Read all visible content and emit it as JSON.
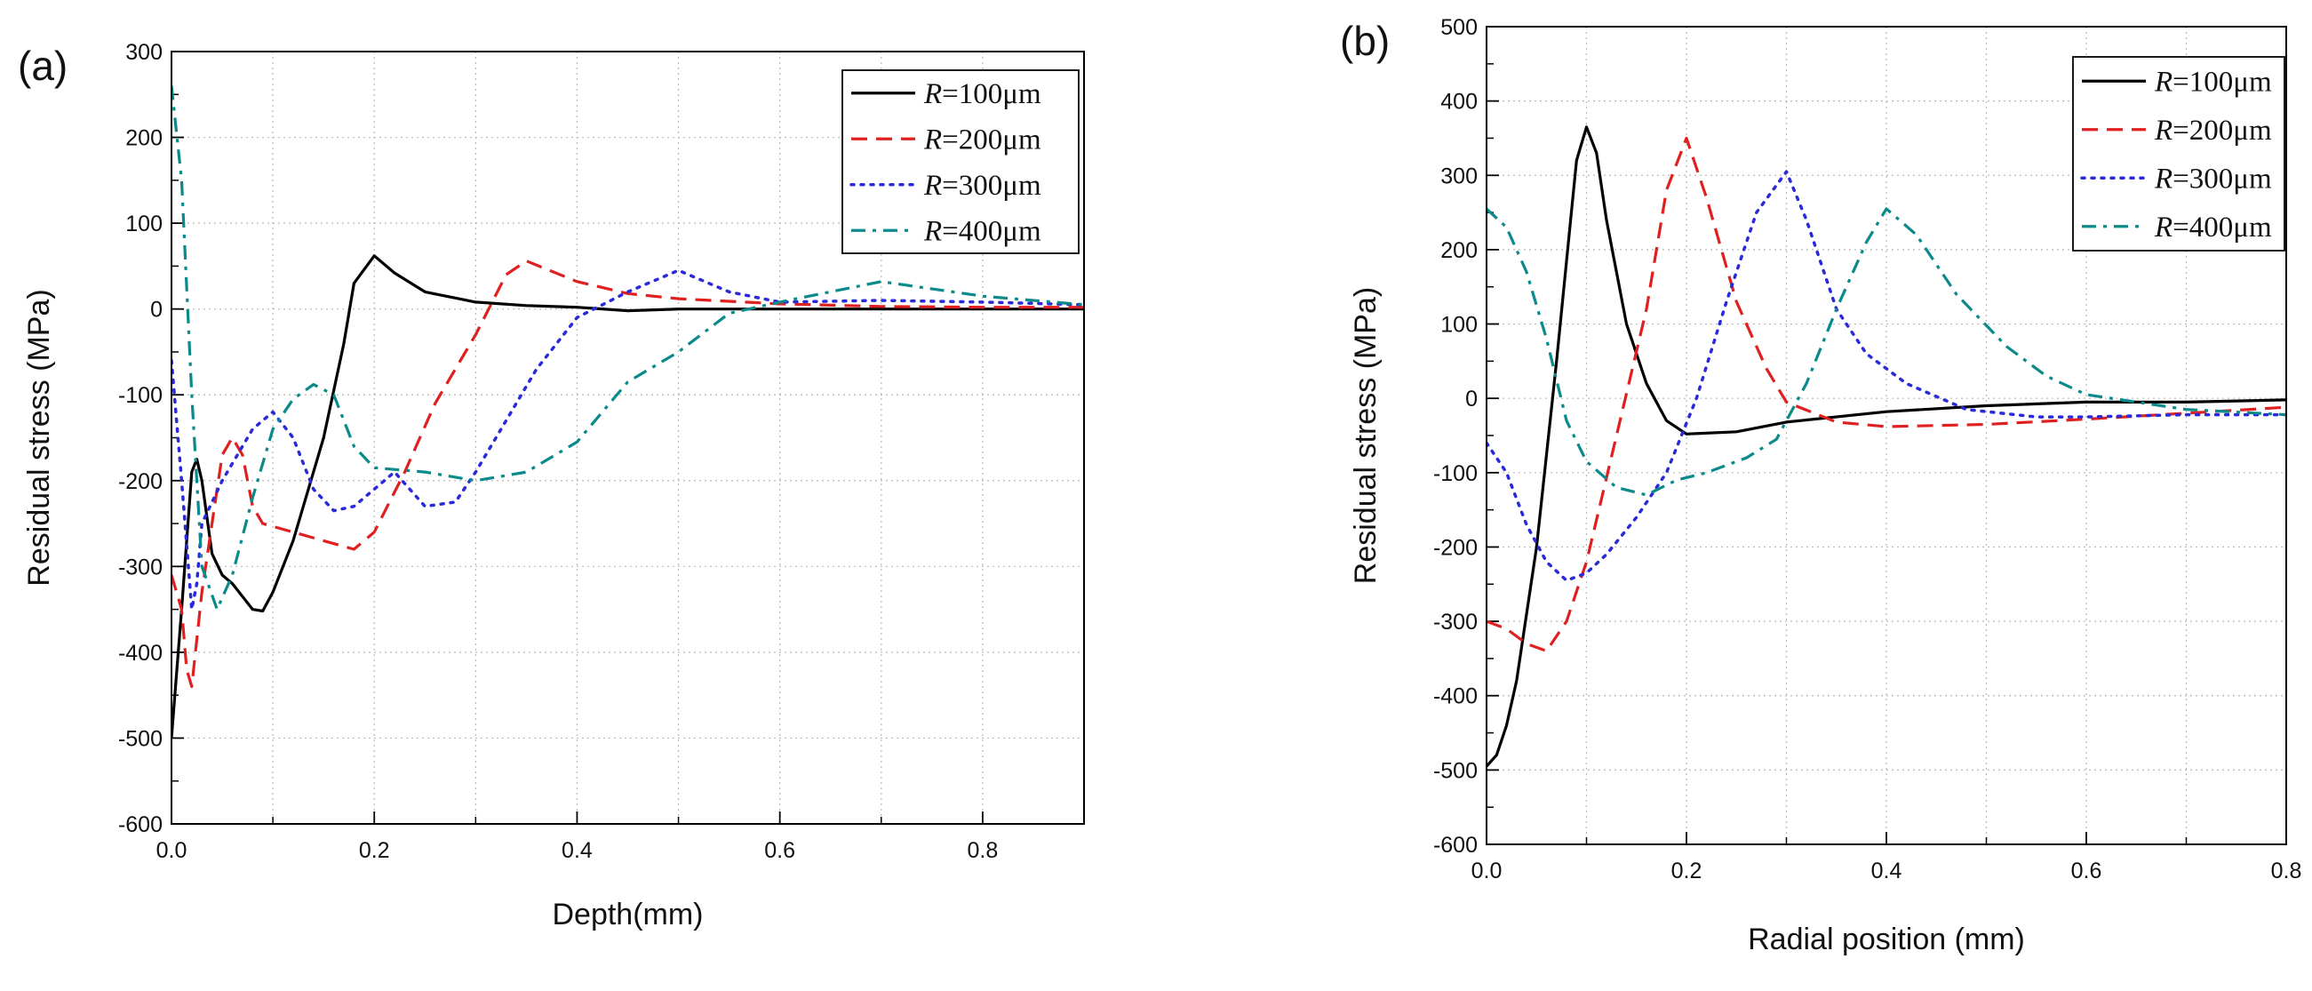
{
  "chart_data": [
    {
      "type": "line",
      "panel_label": "(a)",
      "xlabel": "Depth(mm)",
      "ylabel": "Residual stress (MPa)",
      "xlim": [
        0,
        0.9
      ],
      "ylim": [
        -600,
        300
      ],
      "x_ticks": [
        0.0,
        0.2,
        0.4,
        0.6,
        0.8
      ],
      "x_tick_labels": [
        "0.0",
        "0.2",
        "0.4",
        "0.6",
        "0.8"
      ],
      "y_ticks": [
        -600,
        -500,
        -400,
        -300,
        -200,
        -100,
        0,
        100,
        200,
        300
      ],
      "y_tick_labels": [
        "-600",
        "-500",
        "-400",
        "-300",
        "-200",
        "-100",
        "0",
        "100",
        "200",
        "300"
      ],
      "grid": true,
      "legend_position": "top-right",
      "series": [
        {
          "name": "R=100μm",
          "legend_var": "R",
          "legend_rest": "=100μm",
          "color": "#000000",
          "style": "solid",
          "points": [
            [
              0,
              -500
            ],
            [
              0.01,
              -350
            ],
            [
              0.02,
              -190
            ],
            [
              0.025,
              -175
            ],
            [
              0.03,
              -200
            ],
            [
              0.04,
              -285
            ],
            [
              0.05,
              -310
            ],
            [
              0.06,
              -320
            ],
            [
              0.07,
              -335
            ],
            [
              0.08,
              -350
            ],
            [
              0.09,
              -352
            ],
            [
              0.1,
              -330
            ],
            [
              0.12,
              -270
            ],
            [
              0.15,
              -150
            ],
            [
              0.17,
              -40
            ],
            [
              0.18,
              30
            ],
            [
              0.2,
              62
            ],
            [
              0.22,
              42
            ],
            [
              0.25,
              20
            ],
            [
              0.3,
              8
            ],
            [
              0.35,
              4
            ],
            [
              0.4,
              2
            ],
            [
              0.45,
              -2
            ],
            [
              0.5,
              0
            ],
            [
              0.6,
              0
            ],
            [
              0.7,
              0
            ],
            [
              0.8,
              0
            ],
            [
              0.9,
              0
            ]
          ]
        },
        {
          "name": "R=200μm",
          "legend_var": "R",
          "legend_rest": "=200μm",
          "color": "#e02020",
          "style": "dashed",
          "points": [
            [
              0,
              -310
            ],
            [
              0.01,
              -350
            ],
            [
              0.015,
              -420
            ],
            [
              0.02,
              -440
            ],
            [
              0.03,
              -330
            ],
            [
              0.04,
              -250
            ],
            [
              0.05,
              -170
            ],
            [
              0.06,
              -150
            ],
            [
              0.07,
              -170
            ],
            [
              0.08,
              -230
            ],
            [
              0.09,
              -250
            ],
            [
              0.12,
              -260
            ],
            [
              0.15,
              -270
            ],
            [
              0.18,
              -280
            ],
            [
              0.2,
              -260
            ],
            [
              0.23,
              -190
            ],
            [
              0.26,
              -110
            ],
            [
              0.3,
              -30
            ],
            [
              0.33,
              40
            ],
            [
              0.35,
              56
            ],
            [
              0.4,
              32
            ],
            [
              0.45,
              18
            ],
            [
              0.5,
              12
            ],
            [
              0.6,
              6
            ],
            [
              0.7,
              3
            ],
            [
              0.8,
              2
            ],
            [
              0.9,
              2
            ]
          ]
        },
        {
          "name": "R=300μm",
          "legend_var": "R",
          "legend_rest": "=300μm",
          "color": "#2a2ad8",
          "style": "dotted",
          "points": [
            [
              0,
              -60
            ],
            [
              0.01,
              -200
            ],
            [
              0.02,
              -350
            ],
            [
              0.025,
              -320
            ],
            [
              0.03,
              -250
            ],
            [
              0.05,
              -200
            ],
            [
              0.08,
              -140
            ],
            [
              0.1,
              -120
            ],
            [
              0.12,
              -150
            ],
            [
              0.14,
              -210
            ],
            [
              0.16,
              -235
            ],
            [
              0.18,
              -230
            ],
            [
              0.2,
              -210
            ],
            [
              0.22,
              -190
            ],
            [
              0.25,
              -230
            ],
            [
              0.28,
              -225
            ],
            [
              0.3,
              -190
            ],
            [
              0.33,
              -130
            ],
            [
              0.36,
              -70
            ],
            [
              0.4,
              -10
            ],
            [
              0.45,
              20
            ],
            [
              0.5,
              45
            ],
            [
              0.55,
              20
            ],
            [
              0.6,
              8
            ],
            [
              0.7,
              10
            ],
            [
              0.8,
              8
            ],
            [
              0.9,
              5
            ]
          ]
        },
        {
          "name": "R=400μm",
          "legend_var": "R",
          "legend_rest": "=400μm",
          "color": "#0a8a8a",
          "style": "dashdot",
          "points": [
            [
              0,
              260
            ],
            [
              0.01,
              150
            ],
            [
              0.02,
              -100
            ],
            [
              0.03,
              -300
            ],
            [
              0.045,
              -350
            ],
            [
              0.06,
              -310
            ],
            [
              0.08,
              -220
            ],
            [
              0.1,
              -140
            ],
            [
              0.12,
              -105
            ],
            [
              0.14,
              -88
            ],
            [
              0.16,
              -100
            ],
            [
              0.18,
              -160
            ],
            [
              0.2,
              -185
            ],
            [
              0.25,
              -190
            ],
            [
              0.3,
              -200
            ],
            [
              0.35,
              -190
            ],
            [
              0.4,
              -155
            ],
            [
              0.45,
              -85
            ],
            [
              0.5,
              -50
            ],
            [
              0.55,
              -5
            ],
            [
              0.6,
              8
            ],
            [
              0.7,
              32
            ],
            [
              0.8,
              15
            ],
            [
              0.9,
              5
            ]
          ]
        }
      ]
    },
    {
      "type": "line",
      "panel_label": "(b)",
      "xlabel": "Radial position (mm)",
      "ylabel": "Residual stress (MPa)",
      "xlim": [
        0,
        0.8
      ],
      "ylim": [
        -600,
        500
      ],
      "x_ticks": [
        0.0,
        0.2,
        0.4,
        0.6,
        0.8
      ],
      "x_tick_labels": [
        "0.0",
        "0.2",
        "0.4",
        "0.6",
        "0.8"
      ],
      "y_ticks": [
        -600,
        -500,
        -400,
        -300,
        -200,
        -100,
        0,
        100,
        200,
        300,
        400,
        500
      ],
      "y_tick_labels": [
        "-600",
        "-500",
        "-400",
        "-300",
        "-200",
        "-100",
        "0",
        "100",
        "200",
        "300",
        "400",
        "500"
      ],
      "grid": true,
      "legend_position": "top-right",
      "series": [
        {
          "name": "R=100μm",
          "legend_var": "R",
          "legend_rest": "=100μm",
          "color": "#000000",
          "style": "solid",
          "points": [
            [
              0,
              -495
            ],
            [
              0.01,
              -480
            ],
            [
              0.02,
              -440
            ],
            [
              0.03,
              -380
            ],
            [
              0.05,
              -200
            ],
            [
              0.07,
              50
            ],
            [
              0.09,
              320
            ],
            [
              0.1,
              365
            ],
            [
              0.11,
              330
            ],
            [
              0.12,
              240
            ],
            [
              0.14,
              100
            ],
            [
              0.16,
              20
            ],
            [
              0.18,
              -30
            ],
            [
              0.2,
              -48
            ],
            [
              0.25,
              -45
            ],
            [
              0.3,
              -32
            ],
            [
              0.4,
              -18
            ],
            [
              0.5,
              -10
            ],
            [
              0.6,
              -5
            ],
            [
              0.7,
              -5
            ],
            [
              0.8,
              -2
            ]
          ]
        },
        {
          "name": "R=200μm",
          "legend_var": "R",
          "legend_rest": "=200μm",
          "color": "#e02020",
          "style": "dashed",
          "points": [
            [
              0,
              -300
            ],
            [
              0.02,
              -310
            ],
            [
              0.04,
              -330
            ],
            [
              0.06,
              -340
            ],
            [
              0.08,
              -300
            ],
            [
              0.1,
              -220
            ],
            [
              0.13,
              -50
            ],
            [
              0.16,
              120
            ],
            [
              0.18,
              280
            ],
            [
              0.2,
              350
            ],
            [
              0.22,
              270
            ],
            [
              0.25,
              130
            ],
            [
              0.28,
              40
            ],
            [
              0.3,
              -5
            ],
            [
              0.35,
              -32
            ],
            [
              0.4,
              -38
            ],
            [
              0.5,
              -35
            ],
            [
              0.6,
              -28
            ],
            [
              0.7,
              -20
            ],
            [
              0.8,
              -12
            ]
          ]
        },
        {
          "name": "R=300μm",
          "legend_var": "R",
          "legend_rest": "=300μm",
          "color": "#2a2ad8",
          "style": "dotted",
          "points": [
            [
              0,
              -60
            ],
            [
              0.02,
              -100
            ],
            [
              0.04,
              -170
            ],
            [
              0.06,
              -220
            ],
            [
              0.08,
              -245
            ],
            [
              0.1,
              -235
            ],
            [
              0.12,
              -210
            ],
            [
              0.15,
              -160
            ],
            [
              0.18,
              -100
            ],
            [
              0.21,
              0
            ],
            [
              0.24,
              130
            ],
            [
              0.27,
              250
            ],
            [
              0.3,
              305
            ],
            [
              0.32,
              240
            ],
            [
              0.35,
              120
            ],
            [
              0.38,
              60
            ],
            [
              0.42,
              20
            ],
            [
              0.48,
              -15
            ],
            [
              0.55,
              -25
            ],
            [
              0.6,
              -25
            ],
            [
              0.7,
              -22
            ],
            [
              0.8,
              -22
            ]
          ]
        },
        {
          "name": "R=400μm",
          "legend_var": "R",
          "legend_rest": "=400μm",
          "color": "#0a8a8a",
          "style": "dashdot",
          "points": [
            [
              0,
              255
            ],
            [
              0.02,
              230
            ],
            [
              0.04,
              170
            ],
            [
              0.06,
              80
            ],
            [
              0.08,
              -30
            ],
            [
              0.1,
              -85
            ],
            [
              0.13,
              -120
            ],
            [
              0.16,
              -130
            ],
            [
              0.19,
              -110
            ],
            [
              0.22,
              -100
            ],
            [
              0.26,
              -80
            ],
            [
              0.29,
              -55
            ],
            [
              0.32,
              20
            ],
            [
              0.35,
              120
            ],
            [
              0.38,
              210
            ],
            [
              0.4,
              255
            ],
            [
              0.43,
              220
            ],
            [
              0.47,
              140
            ],
            [
              0.52,
              70
            ],
            [
              0.56,
              30
            ],
            [
              0.6,
              5
            ],
            [
              0.7,
              -15
            ],
            [
              0.8,
              -22
            ]
          ]
        }
      ]
    }
  ]
}
